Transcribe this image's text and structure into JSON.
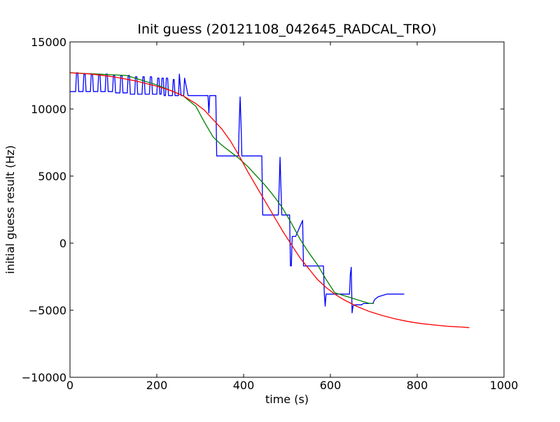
{
  "chart_data": {
    "type": "line",
    "title": "Init guess (20121108_042645_RADCAL_TRO)",
    "xlabel": "time (s)",
    "ylabel": "initial guess result (Hz)",
    "xlim": [
      0,
      1000
    ],
    "ylim": [
      -10000,
      15000
    ],
    "xticks": [
      0,
      200,
      400,
      600,
      800,
      1000
    ],
    "xtick_labels": [
      "0",
      "200",
      "400",
      "600",
      "800",
      "1000"
    ],
    "yticks": [
      -10000,
      -5000,
      0,
      5000,
      10000,
      15000
    ],
    "ytick_labels": [
      "−10000",
      "−5000",
      "0",
      "5000",
      "10000",
      "15000"
    ],
    "grid": false,
    "legend": false,
    "series": [
      {
        "color": "#0000ff",
        "x": [
          0,
          13,
          15,
          18,
          20,
          30,
          32,
          35,
          37,
          47,
          49,
          52,
          54,
          64,
          66,
          69,
          71,
          81,
          83,
          86,
          88,
          98,
          100,
          103,
          105,
          115,
          117,
          120,
          122,
          132,
          134,
          137,
          139,
          149,
          151,
          154,
          156,
          166,
          168,
          171,
          173,
          183,
          185,
          188,
          190,
          200,
          202,
          205,
          207,
          210,
          212,
          215,
          217,
          220,
          222,
          225,
          227,
          236,
          238,
          240,
          242,
          250,
          252,
          256,
          258,
          262,
          264,
          272,
          274,
          276,
          278,
          318,
          320,
          322,
          324,
          336,
          338,
          340,
          342,
          388,
          390,
          392,
          394,
          396,
          398,
          400,
          402,
          438,
          440,
          442,
          444,
          478,
          480,
          482,
          484,
          486,
          488,
          490,
          492,
          506,
          508,
          510,
          512,
          518,
          520,
          536,
          538,
          540,
          542,
          545,
          547,
          584,
          586,
          588,
          590,
          592,
          594,
          638,
          640,
          644,
          646,
          648,
          650,
          652,
          656,
          662,
          668,
          672,
          676,
          682,
          690,
          698,
          702,
          706,
          710,
          730,
          750,
          770
        ],
        "y": [
          11300,
          11300,
          12700,
          12700,
          11300,
          11300,
          12600,
          12600,
          11300,
          11300,
          12600,
          12600,
          11300,
          11300,
          12600,
          12600,
          11300,
          11300,
          12600,
          12600,
          11300,
          11300,
          12500,
          12500,
          11200,
          11200,
          12500,
          12500,
          11200,
          11200,
          12500,
          12500,
          11100,
          11100,
          12400,
          12400,
          11100,
          11100,
          12400,
          12400,
          11100,
          11100,
          12400,
          12400,
          11100,
          11100,
          12300,
          12300,
          11100,
          11100,
          12300,
          12300,
          11000,
          11000,
          12300,
          12300,
          11000,
          11000,
          12200,
          12200,
          11000,
          11000,
          12600,
          11000,
          11000,
          11000,
          12300,
          11000,
          11000,
          11000,
          11000,
          11000,
          9700,
          11000,
          11000,
          11000,
          6500,
          6500,
          6500,
          6500,
          9000,
          10900,
          9000,
          6500,
          6500,
          6500,
          6500,
          6500,
          6500,
          6500,
          2100,
          2100,
          2100,
          4200,
          6400,
          4200,
          2100,
          2100,
          2100,
          2100,
          -1700,
          -1700,
          500,
          500,
          500,
          1700,
          -1700,
          -1700,
          -1700,
          -1700,
          -1700,
          -1700,
          -3800,
          -4700,
          -3800,
          -3800,
          -3800,
          -3800,
          -3800,
          -3800,
          -2300,
          -1800,
          -5200,
          -4700,
          -4600,
          -4600,
          -4600,
          -4600,
          -4500,
          -4500,
          -4500,
          -4500,
          -4200,
          -4100,
          -4000,
          -3800,
          -3800,
          -3800
        ]
      },
      {
        "color": "#008000",
        "x": [
          0,
          130,
          150,
          200,
          230,
          260,
          290,
          310,
          330,
          350,
          370,
          390,
          410,
          430,
          450,
          470,
          490,
          510,
          530,
          550,
          570,
          590,
          610,
          630,
          650,
          670,
          690,
          700
        ],
        "y": [
          12700,
          12500,
          12300,
          11800,
          11400,
          11000,
          10200,
          9000,
          7900,
          7300,
          6800,
          6300,
          5700,
          5000,
          4300,
          3500,
          2600,
          1500,
          300,
          -700,
          -1600,
          -2700,
          -3700,
          -3900,
          -4100,
          -4300,
          -4500,
          -4500
        ]
      },
      {
        "color": "#ff0000",
        "x": [
          0,
          50,
          100,
          150,
          200,
          230,
          260,
          290,
          310,
          330,
          350,
          370,
          390,
          410,
          430,
          450,
          470,
          490,
          510,
          530,
          550,
          570,
          590,
          610,
          630,
          660,
          690,
          720,
          750,
          780,
          810,
          840,
          870,
          900,
          920
        ],
        "y": [
          12700,
          12600,
          12400,
          12100,
          11700,
          11400,
          11000,
          10400,
          9900,
          9200,
          8500,
          7600,
          6500,
          5300,
          4200,
          3100,
          2000,
          900,
          -100,
          -1100,
          -1900,
          -2700,
          -3300,
          -3800,
          -4200,
          -4700,
          -5100,
          -5400,
          -5650,
          -5850,
          -6000,
          -6100,
          -6200,
          -6250,
          -6300
        ]
      }
    ]
  }
}
